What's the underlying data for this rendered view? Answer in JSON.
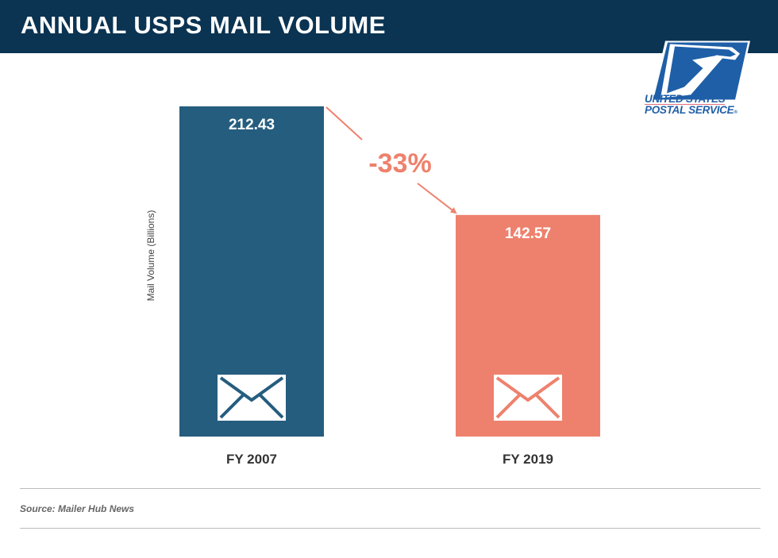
{
  "header": {
    "title": "ANNUAL USPS MAIL VOLUME"
  },
  "logo": {
    "line1": "UNITED STATES",
    "line2": "POSTAL SERVICE",
    "mark": "®"
  },
  "chart_data": {
    "type": "bar",
    "categories": [
      "FY 2007",
      "FY 2019"
    ],
    "values": [
      212.43,
      142.57
    ],
    "data_labels": [
      "212.43",
      "142.57"
    ],
    "ylabel": "Mail Volume (Billions)",
    "ylim": [
      0,
      212.43
    ],
    "grid": false,
    "colors": [
      "#255d7e",
      "#ee816d"
    ],
    "annotation": {
      "text": "-33%",
      "color": "#ee816d"
    },
    "bar_icon": "envelope-icon"
  },
  "footer": {
    "source": "Source: Mailer Hub News"
  }
}
